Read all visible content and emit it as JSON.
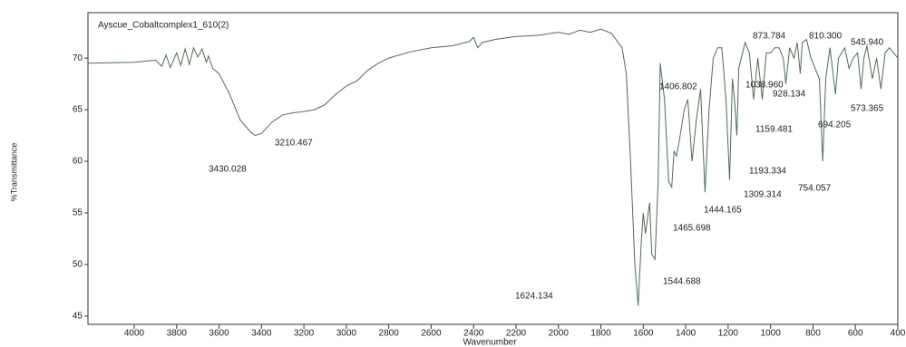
{
  "chart_data": {
    "type": "line",
    "title": "Ayscue_Cobaltcomplex1_610(2)",
    "x_label": "Wavenumber",
    "y_label": "%Transmittance",
    "xlim": [
      4218,
      400
    ],
    "ylim": [
      44.2,
      74.4
    ],
    "xticks": [
      4000,
      3800,
      3600,
      3400,
      3200,
      3000,
      2800,
      2600,
      2400,
      2200,
      2000,
      1800,
      1600,
      1400,
      1200,
      1000,
      800,
      600,
      400
    ],
    "yticks": [
      45,
      50,
      55,
      60,
      65,
      70
    ],
    "series": [
      {
        "color": "#4f6f52",
        "x": [
          4218,
          4000,
          3900,
          3870,
          3850,
          3830,
          3800,
          3780,
          3760,
          3740,
          3720,
          3700,
          3680,
          3660,
          3650,
          3630,
          3600,
          3550,
          3500,
          3450,
          3430,
          3400,
          3350,
          3300,
          3250,
          3210,
          3150,
          3100,
          3050,
          3000,
          2950,
          2900,
          2850,
          2800,
          2700,
          2600,
          2500,
          2420,
          2400,
          2380,
          2360,
          2300,
          2200,
          2100,
          2000,
          1950,
          1900,
          1850,
          1800,
          1750,
          1700,
          1680,
          1660,
          1640,
          1624,
          1610,
          1600,
          1590,
          1570,
          1560,
          1545,
          1530,
          1520,
          1500,
          1480,
          1466,
          1455,
          1444,
          1430,
          1407,
          1390,
          1370,
          1350,
          1330,
          1309,
          1290,
          1270,
          1250,
          1230,
          1210,
          1193,
          1180,
          1170,
          1159,
          1150,
          1120,
          1100,
          1080,
          1070,
          1060,
          1039,
          1020,
          1000,
          980,
          960,
          940,
          928,
          910,
          890,
          874,
          860,
          850,
          830,
          810,
          790,
          770,
          754,
          740,
          720,
          694,
          680,
          650,
          630,
          610,
          590,
          573,
          560,
          546,
          520,
          500,
          480,
          460,
          440,
          420,
          400
        ],
        "values": [
          69.5,
          69.6,
          69.8,
          69.2,
          70.3,
          69.1,
          70.5,
          69.3,
          70.9,
          69.4,
          71.0,
          70.1,
          70.9,
          69.6,
          70.2,
          69.0,
          68.5,
          66.5,
          64.0,
          62.8,
          62.5,
          62.7,
          63.8,
          64.5,
          64.7,
          64.8,
          65.0,
          65.5,
          66.5,
          67.3,
          67.8,
          68.8,
          69.5,
          70.0,
          70.6,
          71.0,
          71.2,
          71.6,
          72.0,
          71.0,
          71.5,
          71.8,
          72.1,
          72.2,
          72.5,
          72.3,
          72.7,
          72.5,
          72.8,
          72.4,
          71.0,
          68.5,
          60,
          50,
          46.0,
          52,
          55,
          53,
          56,
          51,
          50.5,
          58,
          69.5,
          66,
          58,
          57.5,
          61,
          60.5,
          62,
          65,
          66,
          60,
          64,
          67,
          57,
          65,
          70,
          71,
          71,
          66,
          58.2,
          68,
          66,
          62.5,
          69,
          71.5,
          70.5,
          66,
          68,
          70,
          66,
          70.5,
          70.5,
          71,
          71,
          70,
          67.5,
          71,
          70,
          71.5,
          68.5,
          71.5,
          71.8,
          70,
          69,
          68,
          60,
          68,
          71,
          66.5,
          70,
          71,
          69,
          70,
          70.5,
          67,
          70,
          71.2,
          68,
          70,
          67,
          70.5,
          71,
          70.5,
          70
        ]
      }
    ],
    "annotations": [
      {
        "value": 3430.028,
        "label": "3430.028"
      },
      {
        "value": 3210.467,
        "label": "3210.467"
      },
      {
        "value": 1624.134,
        "label": "1624.134"
      },
      {
        "value": 1544.688,
        "label": "1544.688"
      },
      {
        "value": 1465.698,
        "label": "1465.698"
      },
      {
        "value": 1444.165,
        "label": "1444.165"
      },
      {
        "value": 1406.802,
        "label": "1406.802"
      },
      {
        "value": 1309.314,
        "label": "1309.314"
      },
      {
        "value": 1193.334,
        "label": "1193.334"
      },
      {
        "value": 1159.481,
        "label": "1159.481"
      },
      {
        "value": 1038.96,
        "label": "1038.960"
      },
      {
        "value": 928.134,
        "label": "928.134"
      },
      {
        "value": 873.784,
        "label": "873.784"
      },
      {
        "value": 810.3,
        "label": "810.300"
      },
      {
        "value": 754.057,
        "label": "754.057"
      },
      {
        "value": 694.205,
        "label": "694.205"
      },
      {
        "value": 573.365,
        "label": "573.365"
      },
      {
        "value": 545.94,
        "label": "545.940"
      }
    ]
  }
}
